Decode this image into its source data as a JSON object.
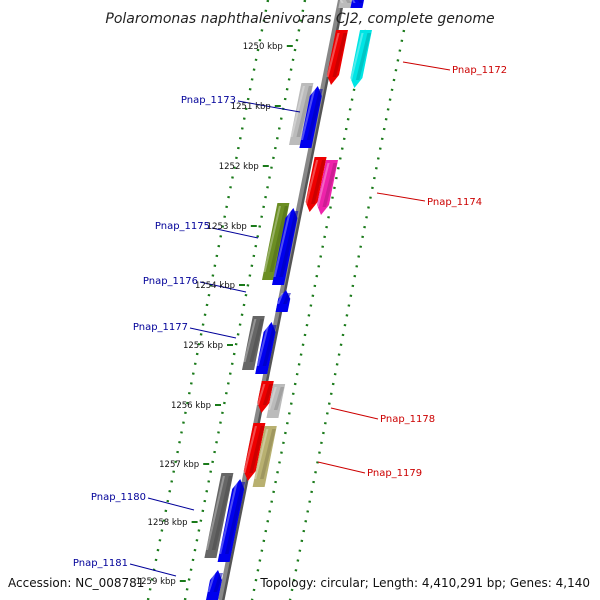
{
  "header": {
    "title": "Polaromonas naphthalenivorans CJ2, complete genome"
  },
  "footer": {
    "accession": "Accession: NC_008781",
    "summary": "Topology: circular; Length: 4,410,291 bp; Genes: 4,140"
  },
  "ruler": {
    "labels": [
      "1250 kbp",
      "1251 kbp",
      "1252 kbp",
      "1253 kbp",
      "1254 kbp",
      "1255 kbp",
      "1256 kbp",
      "1257 kbp",
      "1258 kbp",
      "1259 kbp"
    ]
  },
  "colors": {
    "forward_label": "#000099",
    "reverse_label": "#cc0000",
    "backbone": "#888888",
    "tick": "#1a7a1a"
  },
  "genes": [
    {
      "name": "Pnap_1172",
      "strand": "reverse",
      "color": "#00e5e5"
    },
    {
      "name": "Pnap_1173",
      "strand": "forward",
      "color": "#0000ee"
    },
    {
      "name": "Pnap_1174",
      "strand": "reverse",
      "color": "#ee22aa"
    },
    {
      "name": "Pnap_1175",
      "strand": "forward",
      "color": "#0000ee"
    },
    {
      "name": "Pnap_1176",
      "strand": "forward",
      "color": "#0000ee"
    },
    {
      "name": "Pnap_1177",
      "strand": "forward",
      "color": "#0000ee"
    },
    {
      "name": "Pnap_1178",
      "strand": "reverse",
      "color": "#bbbbbb"
    },
    {
      "name": "Pnap_1179",
      "strand": "reverse",
      "color": "#b8b070"
    },
    {
      "name": "Pnap_1180",
      "strand": "forward",
      "color": "#0000ee"
    },
    {
      "name": "Pnap_1181",
      "strand": "forward",
      "color": "#0000ee"
    }
  ]
}
